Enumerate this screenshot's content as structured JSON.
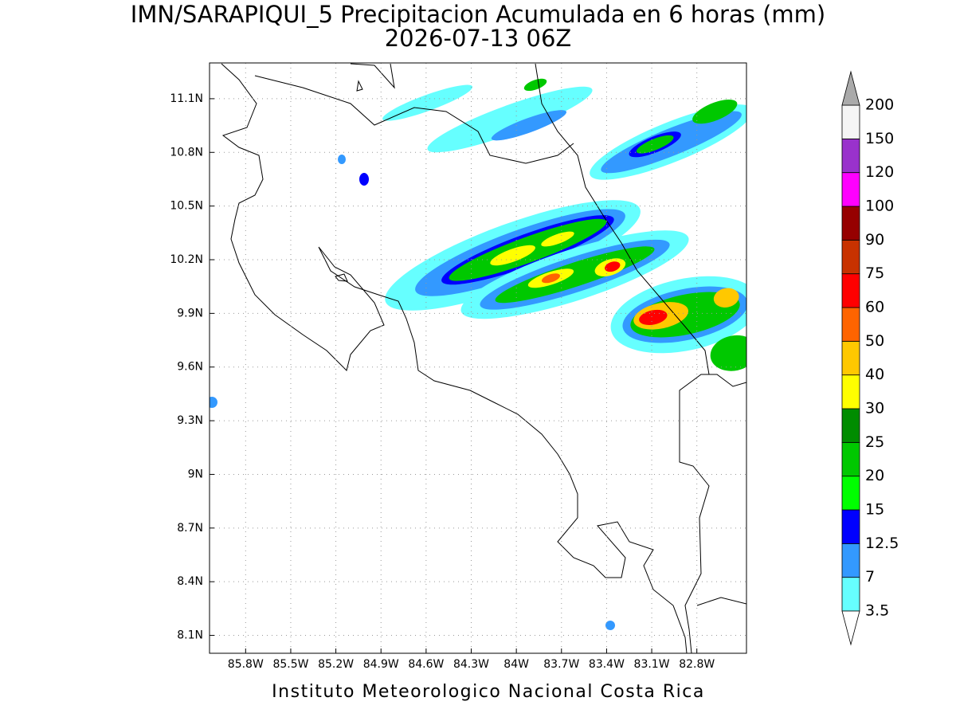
{
  "map": {
    "title": "IMN/SARAPIQUI_5 Precipitacion Acumulada en 6 horas (mm)",
    "subtitle": "2026-07-13 06Z",
    "footer": "Instituto Meteorologico Nacional Costa Rica",
    "xlim": [
      -86.04,
      -82.47
    ],
    "ylim": [
      8.0,
      11.3
    ],
    "xticks": [
      {
        "value": -85.8,
        "label": "85.8W"
      },
      {
        "value": -85.5,
        "label": "85.5W"
      },
      {
        "value": -85.2,
        "label": "85.2W"
      },
      {
        "value": -84.9,
        "label": "84.9W"
      },
      {
        "value": -84.6,
        "label": "84.6W"
      },
      {
        "value": -84.3,
        "label": "84.3W"
      },
      {
        "value": -84.0,
        "label": "84W"
      },
      {
        "value": -83.7,
        "label": "83.7W"
      },
      {
        "value": -83.4,
        "label": "83.4W"
      },
      {
        "value": -83.1,
        "label": "83.1W"
      },
      {
        "value": -82.8,
        "label": "82.8W"
      }
    ],
    "yticks": [
      {
        "value": 8.1,
        "label": "8.1N"
      },
      {
        "value": 8.4,
        "label": "8.4N"
      },
      {
        "value": 8.7,
        "label": "8.7N"
      },
      {
        "value": 9.0,
        "label": "9N"
      },
      {
        "value": 9.3,
        "label": "9.3N"
      },
      {
        "value": 9.6,
        "label": "9.6N"
      },
      {
        "value": 9.9,
        "label": "9.9N"
      },
      {
        "value": 10.2,
        "label": "10.2N"
      },
      {
        "value": 10.5,
        "label": "10.5N"
      },
      {
        "value": 10.8,
        "label": "10.8N"
      },
      {
        "value": 11.1,
        "label": "11.1N"
      }
    ],
    "grid": true
  },
  "colorbar": {
    "levels": [
      3.5,
      7,
      12.5,
      15,
      20,
      25,
      30,
      40,
      50,
      60,
      75,
      90,
      100,
      120,
      150,
      200
    ],
    "colors": [
      "#66ffff",
      "#3399ff",
      "#0000ff",
      "#00ff00",
      "#00c800",
      "#008c00",
      "#ffff00",
      "#ffc800",
      "#ff6400",
      "#ff0000",
      "#c83200",
      "#960000",
      "#ff00ff",
      "#9932cc",
      "#f5f5f5"
    ],
    "over_color": "#aaaaaa",
    "under_color": "#ffffff"
  }
}
